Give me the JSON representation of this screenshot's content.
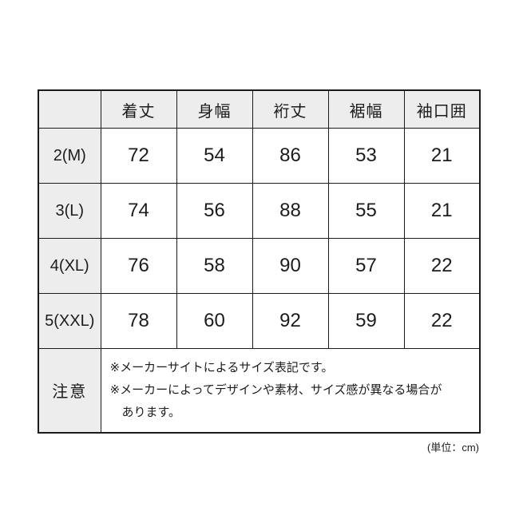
{
  "table": {
    "columns": [
      "着丈",
      "身幅",
      "裄丈",
      "裾幅",
      "袖口囲"
    ],
    "rows": [
      {
        "label": "2(M)",
        "values": [
          "72",
          "54",
          "86",
          "53",
          "21"
        ]
      },
      {
        "label": "3(L)",
        "values": [
          "74",
          "56",
          "88",
          "55",
          "21"
        ]
      },
      {
        "label": "4(XL)",
        "values": [
          "76",
          "58",
          "90",
          "57",
          "22"
        ]
      },
      {
        "label": "5(XXL)",
        "values": [
          "78",
          "60",
          "92",
          "59",
          "22"
        ]
      }
    ],
    "note": {
      "label": "注意",
      "lines": [
        "※メーカーサイトによるサイズ表記です。",
        "※メーカーによってデザインや素材、サイズ感が異なる場合が",
        "　あります。"
      ]
    },
    "unit": "(単位：cm)",
    "colors": {
      "header_bg": "#ededed",
      "border": "#1b1b1b",
      "text": "#1c1c1c"
    }
  }
}
